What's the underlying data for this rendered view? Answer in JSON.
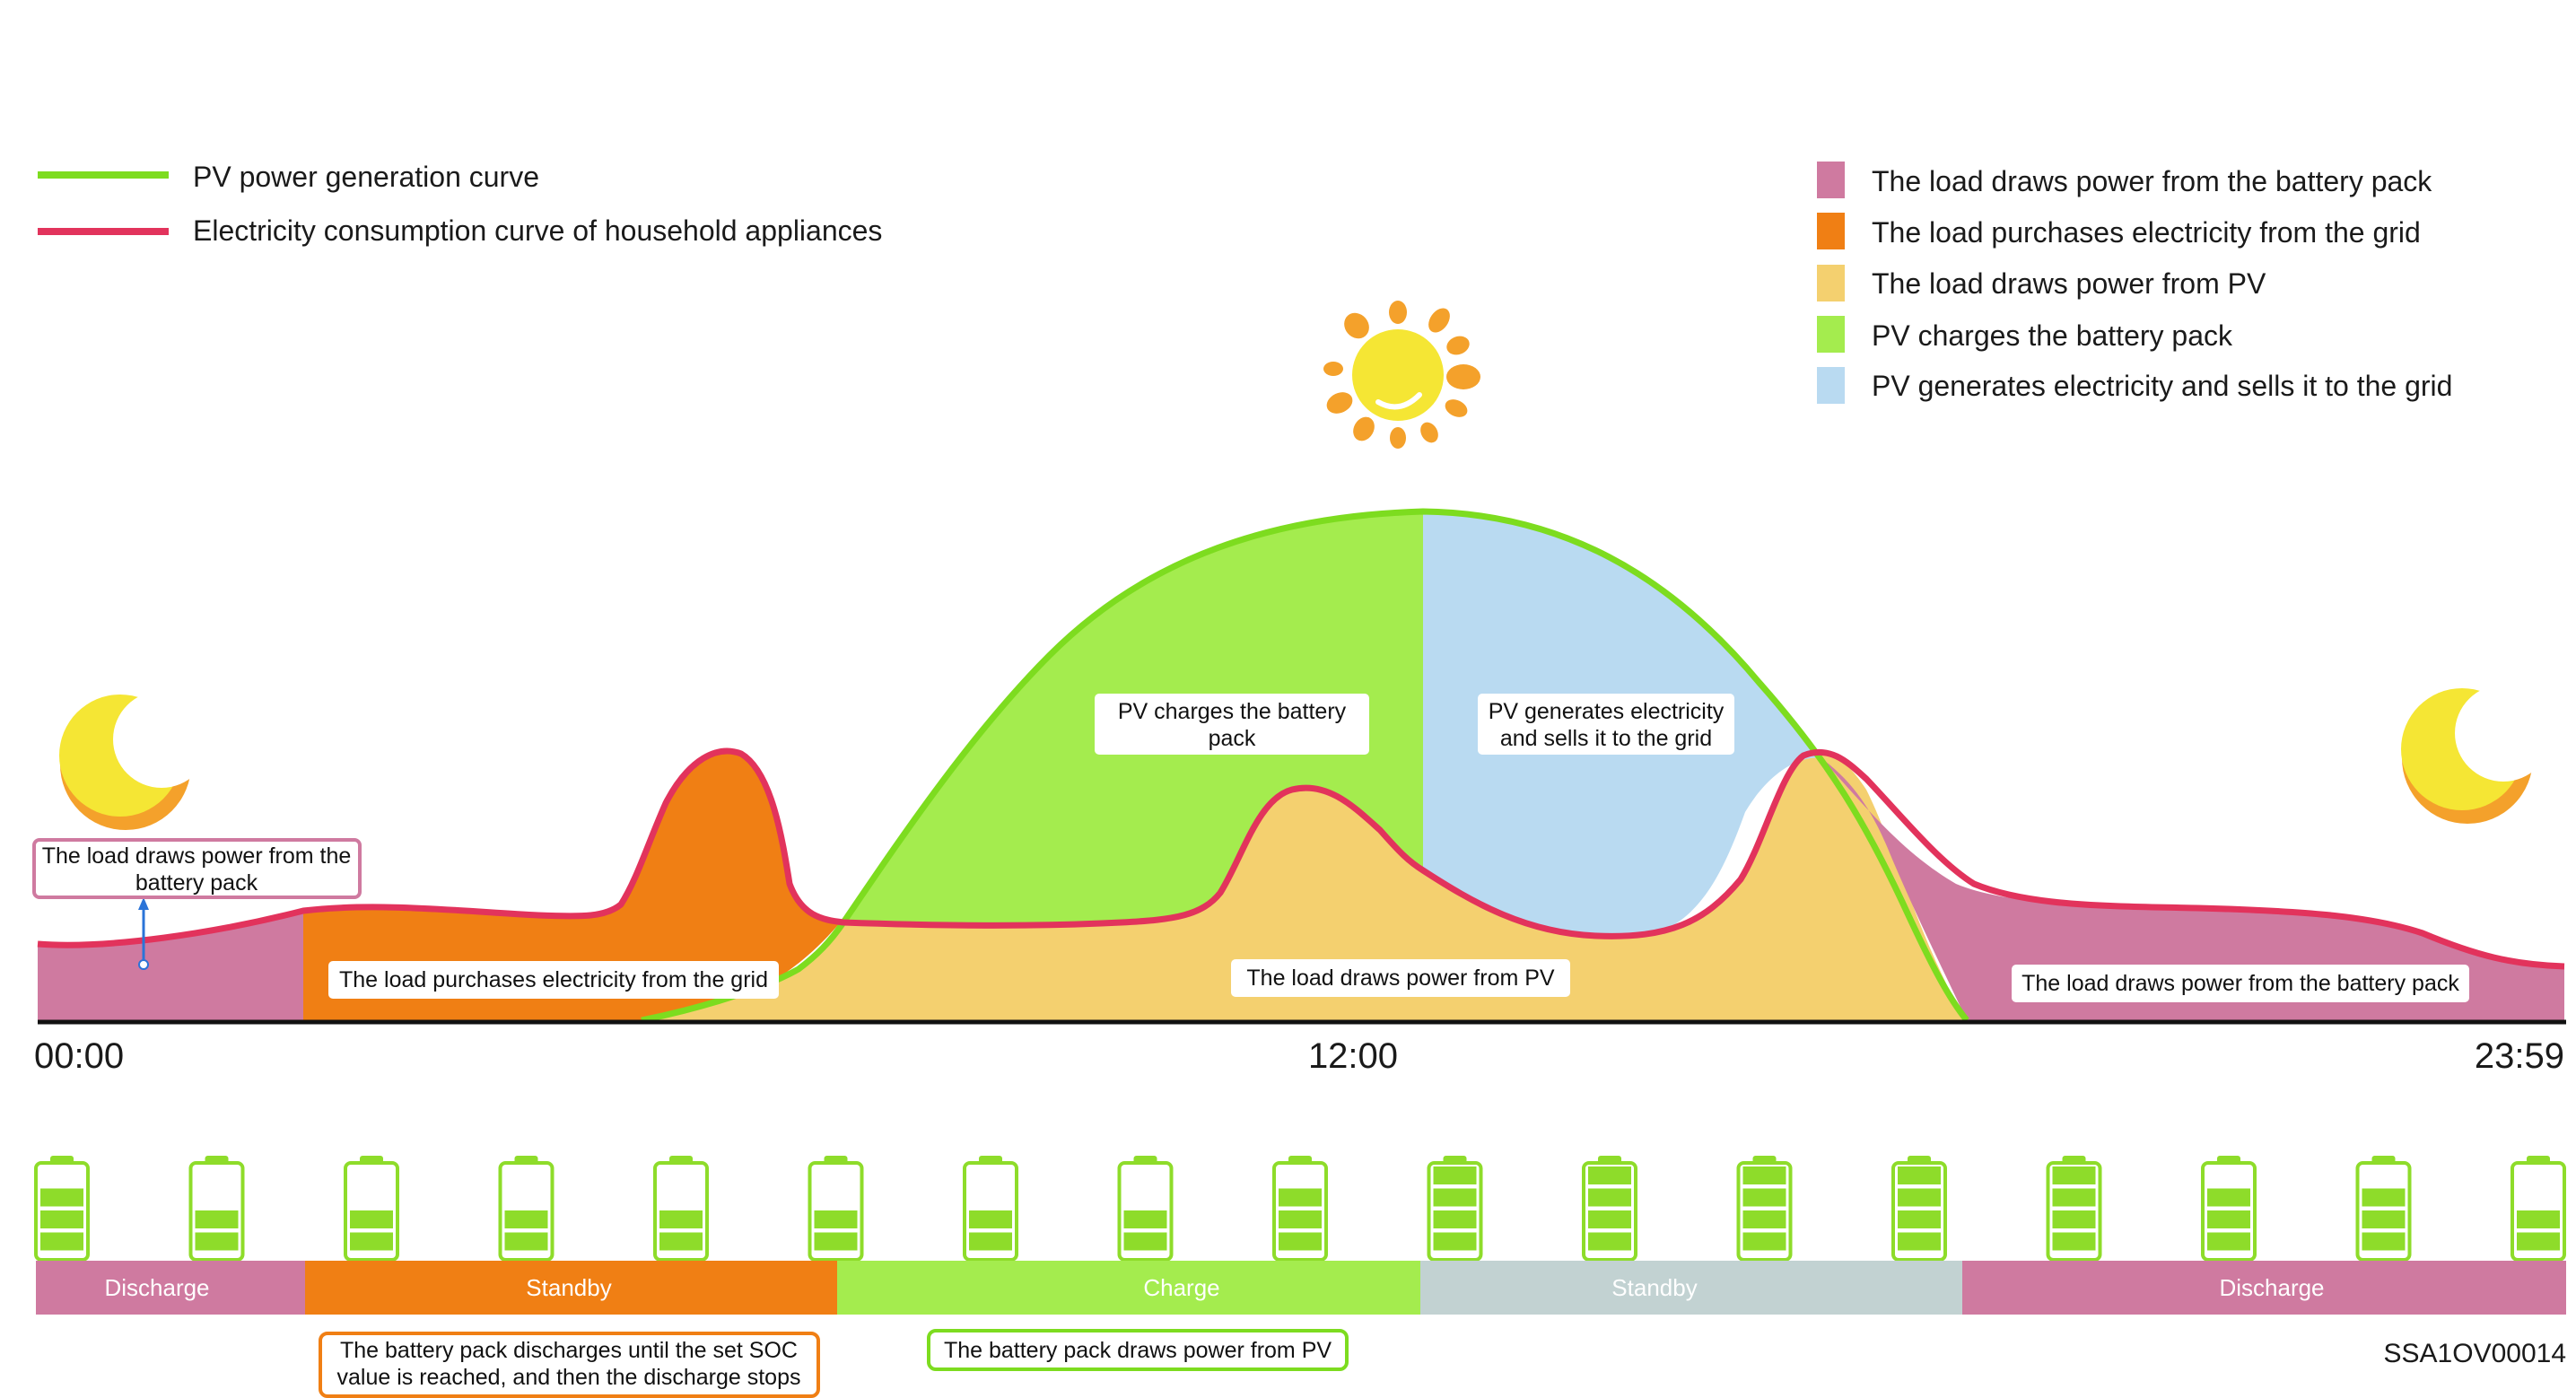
{
  "colors": {
    "pv_curve": "#7ddc1f",
    "load_curve": "#e2335c",
    "battery_to_load": "#cf7aa0",
    "grid_to_load": "#f07f14",
    "pv_to_load": "#f4d06f",
    "pv_to_battery": "#a4ec4e",
    "pv_to_grid": "#b9daf1",
    "standby_gray": "#c2d2d2",
    "battery_green": "#8edc2a",
    "sun": "#f5e634",
    "sun_rays": "#f4a12b"
  },
  "icons": [
    "sun-icon",
    "moon-icon",
    "battery-icon"
  ],
  "line_legend": [
    {
      "label": "PV power generation curve",
      "color": "#7ddc1f"
    },
    {
      "label": "Electricity consumption curve of household appliances",
      "color": "#e2335c"
    }
  ],
  "area_legend": [
    {
      "label": "The load draws power from the battery pack",
      "color": "#cf7aa0"
    },
    {
      "label": "The load purchases electricity from the grid",
      "color": "#f07f14"
    },
    {
      "label": "The load draws power from PV",
      "color": "#f4d06f"
    },
    {
      "label": "PV charges the battery pack",
      "color": "#a4ec4e"
    },
    {
      "label": "PV generates electricity and sells it to the grid",
      "color": "#b9daf1"
    }
  ],
  "region_labels": [
    {
      "lines": [
        "The load draws power from the",
        "battery pack"
      ]
    },
    {
      "lines": [
        "The load purchases electricity from the grid"
      ]
    },
    {
      "lines": [
        "PV charges the battery",
        "pack"
      ]
    },
    {
      "lines": [
        "PV generates electricity",
        "and sells it to the grid"
      ]
    },
    {
      "lines": [
        "The load draws power from PV"
      ]
    },
    {
      "lines": [
        "The load draws power from the battery pack"
      ]
    }
  ],
  "time_axis": [
    "00:00",
    "12:00",
    "23:59"
  ],
  "battery_levels": [
    3,
    2,
    2,
    2,
    2,
    2,
    2,
    2,
    3,
    4,
    4,
    4,
    4,
    4,
    3,
    3,
    2
  ],
  "mode_bands": [
    {
      "label": "Discharge",
      "color": "#cf7aa0"
    },
    {
      "label": "Standby",
      "color": "#f07f14"
    },
    {
      "label": "Charge",
      "color": "#a4ec4e"
    },
    {
      "label": "Standby",
      "color": "#c2d2d2"
    },
    {
      "label": "Discharge",
      "color": "#cf7aa0"
    }
  ],
  "notes": [
    {
      "lines": [
        "The battery pack discharges until the set SOC",
        "value is reached, and then the discharge stops"
      ],
      "color": "#f07f14"
    },
    {
      "lines": [
        "The battery pack draws power from PV"
      ],
      "color": "#7ddc1f"
    }
  ],
  "figure_code": "SSA1OV00014"
}
